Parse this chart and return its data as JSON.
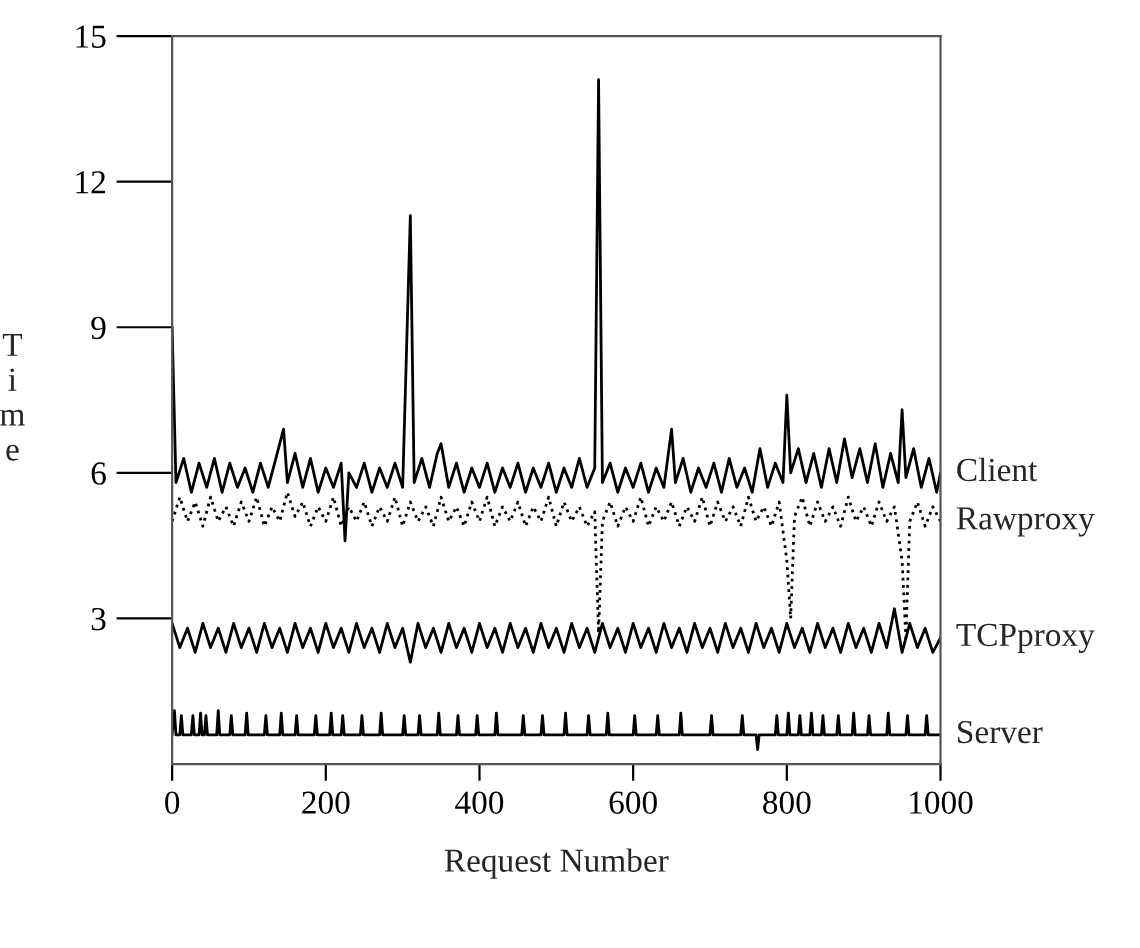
{
  "chart_data": {
    "type": "line",
    "xlabel": "Request Number",
    "ylabel": "Time",
    "xlim": [
      0,
      1000
    ],
    "xticks": [
      0,
      200,
      400,
      600,
      800,
      1000
    ],
    "ylim": [
      0,
      15
    ],
    "yticks": [
      3,
      6,
      9,
      12,
      15
    ],
    "grid": false,
    "legend": false,
    "marker": "none",
    "series": [
      {
        "name": "Client",
        "color": "#000000",
        "line_style": "solid",
        "x": [
          0,
          5,
          15,
          25,
          35,
          45,
          55,
          65,
          75,
          85,
          95,
          105,
          115,
          125,
          135,
          145,
          150,
          160,
          170,
          180,
          190,
          200,
          210,
          220,
          225,
          230,
          240,
          250,
          260,
          270,
          280,
          290,
          300,
          310,
          315,
          325,
          335,
          345,
          350,
          360,
          370,
          380,
          390,
          400,
          410,
          420,
          430,
          440,
          450,
          460,
          470,
          480,
          490,
          500,
          510,
          520,
          530,
          540,
          550,
          555,
          560,
          570,
          580,
          590,
          600,
          610,
          620,
          630,
          640,
          650,
          655,
          665,
          675,
          685,
          695,
          705,
          715,
          725,
          735,
          745,
          755,
          765,
          775,
          785,
          795,
          800,
          805,
          815,
          825,
          835,
          845,
          855,
          865,
          875,
          885,
          895,
          905,
          915,
          925,
          935,
          945,
          950,
          955,
          965,
          975,
          985,
          995,
          1000
        ],
        "values": [
          9.0,
          5.8,
          6.3,
          5.6,
          6.2,
          5.7,
          6.3,
          5.6,
          6.2,
          5.7,
          6.1,
          5.6,
          6.2,
          5.7,
          6.3,
          6.9,
          5.8,
          6.4,
          5.7,
          6.3,
          5.6,
          6.1,
          5.7,
          6.2,
          4.6,
          6.0,
          5.7,
          6.2,
          5.6,
          6.1,
          5.7,
          6.2,
          5.7,
          11.3,
          5.8,
          6.3,
          5.7,
          6.4,
          6.6,
          5.7,
          6.2,
          5.6,
          6.1,
          5.7,
          6.2,
          5.6,
          6.1,
          5.7,
          6.2,
          5.6,
          6.1,
          5.7,
          6.2,
          5.6,
          6.1,
          5.7,
          6.3,
          5.7,
          6.1,
          14.1,
          5.8,
          6.2,
          5.6,
          6.1,
          5.7,
          6.2,
          5.6,
          6.1,
          5.7,
          6.9,
          5.8,
          6.3,
          5.6,
          6.1,
          5.7,
          6.2,
          5.6,
          6.3,
          5.7,
          6.1,
          5.6,
          6.5,
          5.7,
          6.2,
          5.8,
          7.6,
          6.0,
          6.5,
          5.8,
          6.4,
          5.7,
          6.5,
          5.8,
          6.7,
          5.9,
          6.5,
          5.8,
          6.6,
          5.7,
          6.4,
          5.8,
          7.3,
          5.9,
          6.5,
          5.7,
          6.3,
          5.6,
          6.0
        ]
      },
      {
        "name": "Rawproxy",
        "color": "#000000",
        "line_style": "dotted",
        "x": [
          0,
          10,
          20,
          30,
          40,
          50,
          60,
          70,
          80,
          90,
          100,
          110,
          120,
          130,
          140,
          150,
          160,
          170,
          180,
          190,
          200,
          210,
          220,
          230,
          240,
          250,
          260,
          270,
          280,
          290,
          300,
          310,
          320,
          330,
          340,
          350,
          360,
          370,
          380,
          390,
          400,
          410,
          420,
          430,
          440,
          450,
          460,
          470,
          480,
          490,
          500,
          510,
          520,
          530,
          540,
          550,
          555,
          560,
          570,
          580,
          590,
          600,
          610,
          620,
          630,
          640,
          650,
          660,
          670,
          680,
          690,
          700,
          710,
          720,
          730,
          740,
          750,
          760,
          770,
          780,
          790,
          800,
          805,
          810,
          820,
          830,
          840,
          850,
          860,
          870,
          880,
          890,
          900,
          910,
          920,
          930,
          940,
          950,
          955,
          960,
          970,
          980,
          990,
          1000
        ],
        "values": [
          5.0,
          5.5,
          5.0,
          5.4,
          4.9,
          5.5,
          5.0,
          5.3,
          4.9,
          5.4,
          5.0,
          5.5,
          4.9,
          5.3,
          5.0,
          5.6,
          5.1,
          5.4,
          4.9,
          5.3,
          5.0,
          5.5,
          4.9,
          5.3,
          5.0,
          5.4,
          4.9,
          5.3,
          5.0,
          5.5,
          4.9,
          5.4,
          5.0,
          5.3,
          4.9,
          5.5,
          5.0,
          5.3,
          4.9,
          5.4,
          5.0,
          5.5,
          4.9,
          5.3,
          5.0,
          5.4,
          4.9,
          5.3,
          5.0,
          5.5,
          4.9,
          5.4,
          5.0,
          5.3,
          4.9,
          5.2,
          2.7,
          5.0,
          5.4,
          4.9,
          5.3,
          5.0,
          5.5,
          4.9,
          5.3,
          5.0,
          5.4,
          4.9,
          5.3,
          5.0,
          5.5,
          4.9,
          5.4,
          5.0,
          5.3,
          4.9,
          5.5,
          5.0,
          5.3,
          4.9,
          5.4,
          4.2,
          3.0,
          5.1,
          5.5,
          4.9,
          5.4,
          5.0,
          5.3,
          4.9,
          5.5,
          5.0,
          5.3,
          4.9,
          5.4,
          5.0,
          5.3,
          4.2,
          2.6,
          5.0,
          5.4,
          4.9,
          5.3,
          5.0
        ]
      },
      {
        "name": "TCPproxy",
        "color": "#000000",
        "line_style": "solid",
        "x": [
          0,
          10,
          20,
          30,
          40,
          50,
          60,
          70,
          80,
          90,
          100,
          110,
          120,
          130,
          140,
          150,
          160,
          170,
          180,
          190,
          200,
          210,
          220,
          230,
          240,
          250,
          260,
          270,
          280,
          290,
          300,
          310,
          320,
          330,
          340,
          350,
          360,
          370,
          380,
          390,
          400,
          410,
          420,
          430,
          440,
          450,
          460,
          470,
          480,
          490,
          500,
          510,
          520,
          530,
          540,
          550,
          560,
          570,
          580,
          590,
          600,
          610,
          620,
          630,
          640,
          650,
          660,
          670,
          680,
          690,
          700,
          710,
          720,
          730,
          740,
          750,
          760,
          770,
          780,
          790,
          800,
          810,
          820,
          830,
          840,
          850,
          860,
          870,
          880,
          890,
          900,
          910,
          920,
          930,
          940,
          950,
          960,
          970,
          980,
          990,
          1000
        ],
        "values": [
          2.9,
          2.4,
          2.8,
          2.3,
          2.9,
          2.4,
          2.8,
          2.3,
          2.9,
          2.4,
          2.8,
          2.3,
          2.9,
          2.4,
          2.8,
          2.3,
          2.9,
          2.4,
          2.8,
          2.3,
          2.9,
          2.4,
          2.8,
          2.3,
          2.9,
          2.4,
          2.8,
          2.3,
          2.9,
          2.4,
          2.8,
          2.1,
          2.9,
          2.4,
          2.8,
          2.3,
          2.9,
          2.4,
          2.8,
          2.3,
          2.9,
          2.4,
          2.8,
          2.3,
          2.9,
          2.4,
          2.8,
          2.3,
          2.9,
          2.4,
          2.8,
          2.3,
          2.9,
          2.4,
          2.8,
          2.3,
          2.9,
          2.4,
          2.8,
          2.3,
          2.9,
          2.4,
          2.8,
          2.3,
          2.9,
          2.4,
          2.8,
          2.3,
          2.9,
          2.4,
          2.8,
          2.3,
          2.9,
          2.4,
          2.8,
          2.3,
          2.9,
          2.4,
          2.8,
          2.3,
          2.9,
          2.4,
          2.8,
          2.3,
          2.9,
          2.4,
          2.8,
          2.3,
          2.9,
          2.4,
          2.8,
          2.3,
          2.9,
          2.4,
          3.2,
          2.3,
          2.9,
          2.4,
          2.8,
          2.3,
          2.6
        ]
      },
      {
        "name": "Server",
        "color": "#000000",
        "line_style": "solid",
        "x": [
          0,
          3,
          5,
          10,
          12,
          14,
          25,
          27,
          29,
          35,
          37,
          39,
          42,
          44,
          46,
          58,
          60,
          62,
          75,
          77,
          79,
          95,
          97,
          99,
          120,
          122,
          124,
          140,
          142,
          144,
          160,
          162,
          164,
          185,
          187,
          189,
          205,
          207,
          209,
          220,
          222,
          224,
          245,
          247,
          249,
          270,
          272,
          274,
          300,
          302,
          304,
          320,
          322,
          324,
          345,
          347,
          349,
          370,
          372,
          374,
          395,
          397,
          399,
          420,
          422,
          424,
          455,
          457,
          459,
          480,
          482,
          484,
          510,
          512,
          514,
          540,
          542,
          544,
          565,
          567,
          569,
          600,
          602,
          604,
          630,
          632,
          634,
          660,
          662,
          664,
          700,
          702,
          704,
          740,
          742,
          744,
          760,
          762,
          764,
          785,
          787,
          789,
          800,
          802,
          804,
          815,
          817,
          819,
          830,
          832,
          834,
          845,
          847,
          849,
          865,
          867,
          869,
          885,
          887,
          889,
          905,
          907,
          909,
          930,
          932,
          934,
          955,
          957,
          959,
          980,
          982,
          984,
          1000
        ],
        "values": [
          0.6,
          1.1,
          0.6,
          0.6,
          1.0,
          0.6,
          0.6,
          1.0,
          0.6,
          0.6,
          1.05,
          0.6,
          0.6,
          1.0,
          0.6,
          0.6,
          1.1,
          0.6,
          0.6,
          1.0,
          0.6,
          0.6,
          1.05,
          0.6,
          0.6,
          1.0,
          0.6,
          0.6,
          1.05,
          0.6,
          0.6,
          1.0,
          0.6,
          0.6,
          1.0,
          0.6,
          0.6,
          1.05,
          0.6,
          0.6,
          1.0,
          0.6,
          0.6,
          1.0,
          0.6,
          0.6,
          1.05,
          0.6,
          0.6,
          1.0,
          0.6,
          0.6,
          1.0,
          0.6,
          0.6,
          1.05,
          0.6,
          0.6,
          1.0,
          0.6,
          0.6,
          1.0,
          0.6,
          0.6,
          1.05,
          0.6,
          0.6,
          1.0,
          0.6,
          0.6,
          1.0,
          0.6,
          0.6,
          1.05,
          0.6,
          0.6,
          1.0,
          0.6,
          0.6,
          1.05,
          0.6,
          0.6,
          1.0,
          0.6,
          0.6,
          1.0,
          0.6,
          0.6,
          1.05,
          0.6,
          0.6,
          1.0,
          0.6,
          0.6,
          1.0,
          0.6,
          0.6,
          0.3,
          0.6,
          0.6,
          1.0,
          0.6,
          0.6,
          1.05,
          0.6,
          0.6,
          1.0,
          0.6,
          0.6,
          1.05,
          0.6,
          0.6,
          1.0,
          0.6,
          0.6,
          1.0,
          0.6,
          0.6,
          1.05,
          0.6,
          0.6,
          1.0,
          0.6,
          0.6,
          1.05,
          0.6,
          0.6,
          1.0,
          0.6,
          0.6,
          1.0,
          0.6,
          0.6
        ]
      }
    ]
  }
}
